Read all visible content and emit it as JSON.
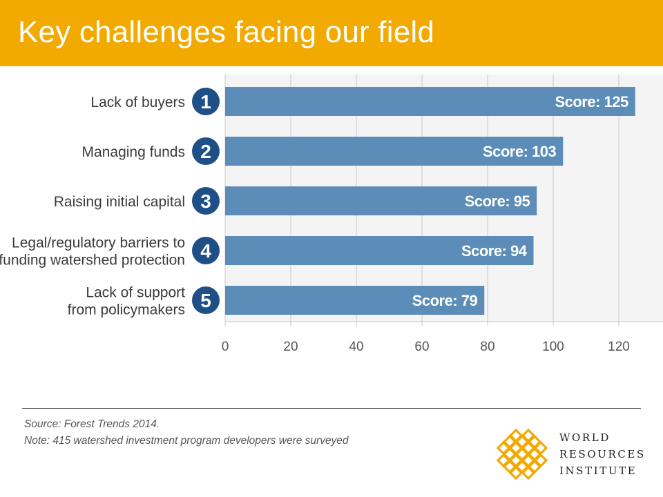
{
  "header": {
    "title": "Key challenges facing our field"
  },
  "chart_data": {
    "type": "bar",
    "orientation": "horizontal",
    "categories": [
      {
        "rank": "1",
        "lines": [
          "Lack of buyers"
        ]
      },
      {
        "rank": "2",
        "lines": [
          "Managing funds"
        ]
      },
      {
        "rank": "3",
        "lines": [
          "Raising initial capital"
        ]
      },
      {
        "rank": "4",
        "lines": [
          "Legal/regulatory barriers to",
          "funding watershed protection"
        ]
      },
      {
        "rank": "5",
        "lines": [
          "Lack of support",
          "from policymakers"
        ]
      }
    ],
    "values": [
      125,
      103,
      95,
      94,
      79
    ],
    "data_labels": [
      "Score: 125",
      "Score: 103",
      "Score: 95",
      "Score: 94",
      "Score: 79"
    ],
    "xlim": [
      0,
      130
    ],
    "xticks": [
      0,
      20,
      40,
      60,
      80,
      100,
      120
    ],
    "grid": true,
    "colors": {
      "bar": "#5b8db8",
      "rank_badge": "#1e4f86",
      "label": "#3a3a3a",
      "grid": "#c8c8c8",
      "panel": "#f4f4f4"
    }
  },
  "footer": {
    "source": "Source: Forest Trends 2014.",
    "note": "Note: 415 watershed investment program developers were surveyed"
  },
  "logo": {
    "line1": "WORLD",
    "line2": "RESOURCES",
    "line3": "INSTITUTE",
    "color": "#f2a900"
  }
}
